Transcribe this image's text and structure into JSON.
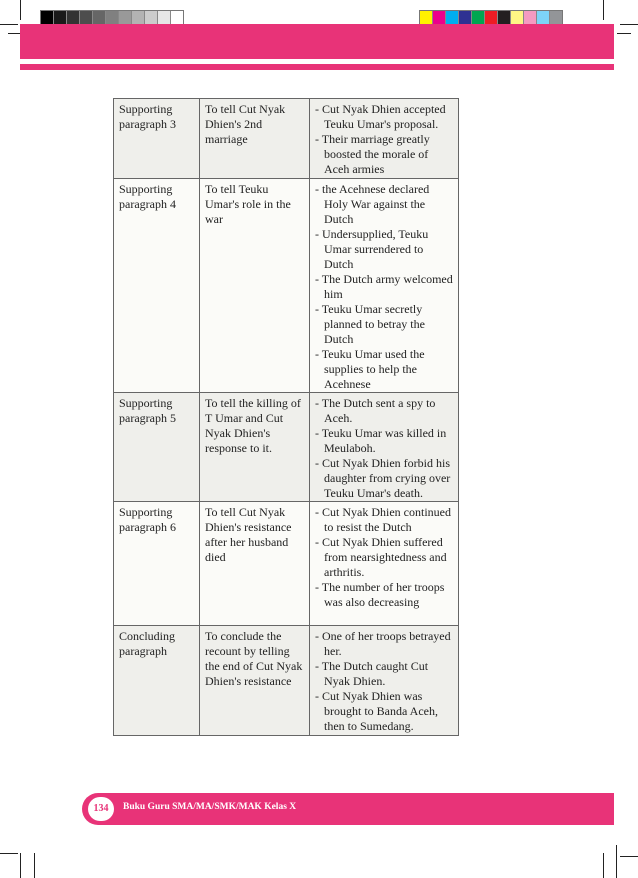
{
  "print_marks": {
    "grayscale": [
      "#000000",
      "#1a1a1a",
      "#333333",
      "#4d4d4d",
      "#666666",
      "#808080",
      "#999999",
      "#b3b3b3",
      "#cccccc",
      "#e6e6e6",
      "#ffffff"
    ],
    "colors": [
      "#fff200",
      "#ec008c",
      "#00aeef",
      "#2e3192",
      "#00a651",
      "#ed1c24",
      "#231f20",
      "#fff685",
      "#f49ac1",
      "#7dd3f7",
      "#939598"
    ],
    "accent": "#e83378"
  },
  "table": {
    "rows": [
      {
        "part": "Supporting paragraph 3",
        "purpose": "To tell Cut Nyak Dhien's 2nd marriage",
        "points": [
          "- Cut Nyak Dhien accepted Teuku Umar's proposal.",
          "- Their marriage greatly boosted the morale of Aceh armies"
        ]
      },
      {
        "part": "Supporting paragraph 4",
        "purpose": "To tell Teuku Umar's role in the war",
        "points": [
          "- the Acehnese declared Holy War against the Dutch",
          "- Undersupplied, Teuku Umar surrendered to Dutch",
          "- The Dutch army welcomed him",
          "- Teuku Umar secretly planned to betray the Dutch",
          "- Teuku Umar used the supplies to help the Acehnese"
        ]
      },
      {
        "part": "Supporting paragraph 5",
        "purpose": "To tell the killing of T Umar and Cut Nyak Dhien's response to it.",
        "points": [
          "- The Dutch sent a spy to Aceh.",
          "- Teuku Umar was killed in Meulaboh.",
          "- Cut Nyak Dhien forbid his daughter from crying over Teuku Umar's death."
        ]
      },
      {
        "part": "Supporting paragraph 6",
        "purpose": "To tell Cut Nyak Dhien's resistance after her husband died",
        "points": [
          "- Cut Nyak Dhien continued to resist the Dutch",
          "- Cut Nyak Dhien suffered from nearsightedness and arthritis.",
          "- The number of her troops was also decreasing"
        ]
      },
      {
        "part": "Concluding paragraph",
        "purpose": "To conclude the recount by telling the end of Cut Nyak Dhien's resistance",
        "points": [
          "- One of her troops betrayed her.",
          "- The Dutch caught Cut Nyak Dhien.",
          "- Cut Nyak Dhien was brought to Banda Aceh, then to Sumedang."
        ]
      }
    ]
  },
  "footer": {
    "page_number": "134",
    "title": "Buku Guru SMA/MA/SMK/MAK Kelas X"
  }
}
